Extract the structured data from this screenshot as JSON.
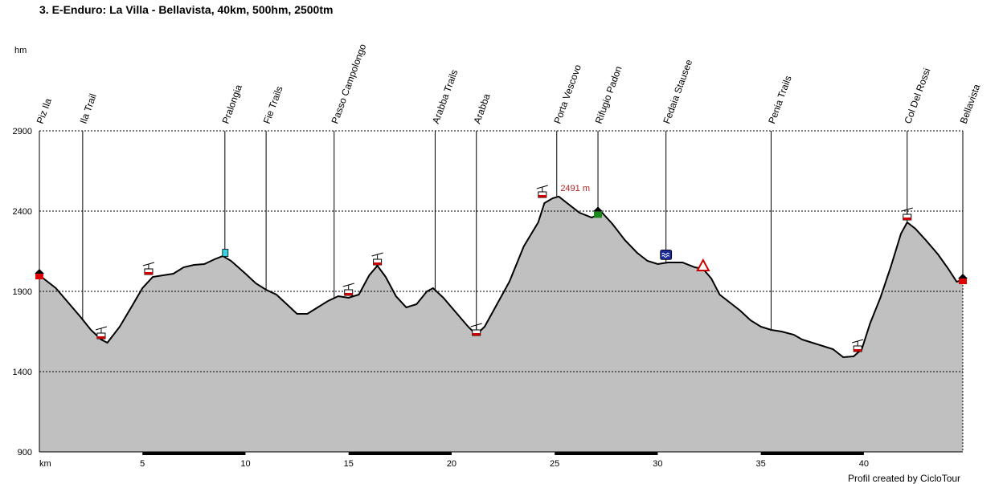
{
  "title": "3. E-Enduro: La Villa - Bellavista, 40km, 500hm, 2500tm",
  "credit": "Profil created by CicloTour",
  "chart_data": {
    "type": "area",
    "ylabel": "hm",
    "xlabel": "km",
    "xlim": [
      0,
      44.8
    ],
    "ylim": [
      900,
      2900
    ],
    "yticks": [
      900,
      1400,
      1900,
      2400,
      2900
    ],
    "xticks": [
      5,
      10,
      15,
      20,
      25,
      30,
      35,
      40
    ],
    "grid": true,
    "colors": {
      "fill": "#c0c0c0",
      "line": "#000000",
      "annotation": "#b22222"
    },
    "profile": [
      [
        0,
        2000
      ],
      [
        0.8,
        1920
      ],
      [
        1.4,
        1830
      ],
      [
        2.0,
        1740
      ],
      [
        2.5,
        1660
      ],
      [
        3.0,
        1600
      ],
      [
        3.3,
        1580
      ],
      [
        3.9,
        1680
      ],
      [
        4.5,
        1810
      ],
      [
        5.0,
        1920
      ],
      [
        5.5,
        1990
      ],
      [
        6.0,
        2000
      ],
      [
        6.5,
        2010
      ],
      [
        7.0,
        2050
      ],
      [
        7.5,
        2065
      ],
      [
        8.0,
        2070
      ],
      [
        8.5,
        2100
      ],
      [
        8.9,
        2120
      ],
      [
        9.3,
        2090
      ],
      [
        10.0,
        2010
      ],
      [
        10.5,
        1950
      ],
      [
        11.0,
        1910
      ],
      [
        11.5,
        1880
      ],
      [
        12.0,
        1820
      ],
      [
        12.5,
        1760
      ],
      [
        13.0,
        1760
      ],
      [
        13.5,
        1800
      ],
      [
        14.0,
        1840
      ],
      [
        14.5,
        1870
      ],
      [
        15.0,
        1860
      ],
      [
        15.5,
        1880
      ],
      [
        16.0,
        2000
      ],
      [
        16.4,
        2060
      ],
      [
        16.8,
        1990
      ],
      [
        17.3,
        1870
      ],
      [
        17.8,
        1800
      ],
      [
        18.3,
        1820
      ],
      [
        18.8,
        1900
      ],
      [
        19.1,
        1920
      ],
      [
        19.6,
        1860
      ],
      [
        20.2,
        1770
      ],
      [
        20.8,
        1680
      ],
      [
        21.2,
        1630
      ],
      [
        21.6,
        1680
      ],
      [
        22.2,
        1820
      ],
      [
        22.8,
        1960
      ],
      [
        23.5,
        2180
      ],
      [
        24.2,
        2330
      ],
      [
        24.5,
        2450
      ],
      [
        24.9,
        2480
      ],
      [
        25.2,
        2491
      ],
      [
        25.6,
        2450
      ],
      [
        26.2,
        2390
      ],
      [
        26.8,
        2360
      ],
      [
        27.3,
        2390
      ],
      [
        27.8,
        2320
      ],
      [
        28.4,
        2220
      ],
      [
        29.0,
        2140
      ],
      [
        29.5,
        2090
      ],
      [
        30.0,
        2070
      ],
      [
        30.5,
        2080
      ],
      [
        31.2,
        2080
      ],
      [
        31.8,
        2050
      ],
      [
        32.2,
        2040
      ],
      [
        32.6,
        1980
      ],
      [
        33.0,
        1880
      ],
      [
        33.6,
        1820
      ],
      [
        34.0,
        1780
      ],
      [
        34.5,
        1720
      ],
      [
        35.0,
        1680
      ],
      [
        35.5,
        1660
      ],
      [
        36.0,
        1650
      ],
      [
        36.6,
        1630
      ],
      [
        37.0,
        1600
      ],
      [
        37.5,
        1580
      ],
      [
        38.0,
        1560
      ],
      [
        38.5,
        1540
      ],
      [
        39.0,
        1490
      ],
      [
        39.5,
        1495
      ],
      [
        39.9,
        1540
      ],
      [
        40.3,
        1700
      ],
      [
        40.8,
        1860
      ],
      [
        41.3,
        2050
      ],
      [
        41.8,
        2260
      ],
      [
        42.1,
        2330
      ],
      [
        42.5,
        2290
      ],
      [
        43.0,
        2220
      ],
      [
        43.6,
        2130
      ],
      [
        44.1,
        2040
      ],
      [
        44.5,
        1960
      ],
      [
        44.8,
        1970
      ]
    ],
    "markers": [
      {
        "km": 0,
        "label": "Piz Ila",
        "icon": "house-icon"
      },
      {
        "km": 2.1,
        "label": "Ila Trail",
        "icon": ""
      },
      {
        "km": 9.0,
        "label": "Pralongia",
        "icon": "flag-icon"
      },
      {
        "km": 11.0,
        "label": "Fie Trails",
        "icon": ""
      },
      {
        "km": 14.3,
        "label": "Passo Campolongo",
        "icon": ""
      },
      {
        "km": 19.2,
        "label": "Arabba Trails",
        "icon": ""
      },
      {
        "km": 21.2,
        "label": "Arabba",
        "icon": ""
      },
      {
        "km": 25.1,
        "label": "Porta Vescovo",
        "icon": ""
      },
      {
        "km": 27.1,
        "label": "Rifugio Padon",
        "icon": "hut-icon"
      },
      {
        "km": 30.4,
        "label": "Fedaia Stausee",
        "icon": "lake-icon"
      },
      {
        "km": 35.5,
        "label": "Penia Trails",
        "icon": ""
      },
      {
        "km": 42.1,
        "label": "Col Del Rossi",
        "icon": ""
      },
      {
        "km": 44.8,
        "label": "Bellavista",
        "icon": "house-icon"
      }
    ],
    "gondolas": [
      {
        "km": 3.0,
        "hm": 1610
      },
      {
        "km": 5.3,
        "hm": 2010
      },
      {
        "km": 15.0,
        "hm": 1880
      },
      {
        "km": 16.4,
        "hm": 2070
      },
      {
        "km": 21.2,
        "hm": 1630
      },
      {
        "km": 24.4,
        "hm": 2490
      },
      {
        "km": 39.7,
        "hm": 1530
      },
      {
        "km": 42.1,
        "hm": 2350
      }
    ],
    "warning": {
      "km": 32.2,
      "hm": 2050
    },
    "peak_annotation": {
      "km": 25.2,
      "hm": 2491,
      "text": "2491 m"
    },
    "km_band_segments": [
      [
        5,
        10
      ],
      [
        15,
        20
      ],
      [
        25,
        30
      ],
      [
        35,
        40
      ]
    ]
  }
}
